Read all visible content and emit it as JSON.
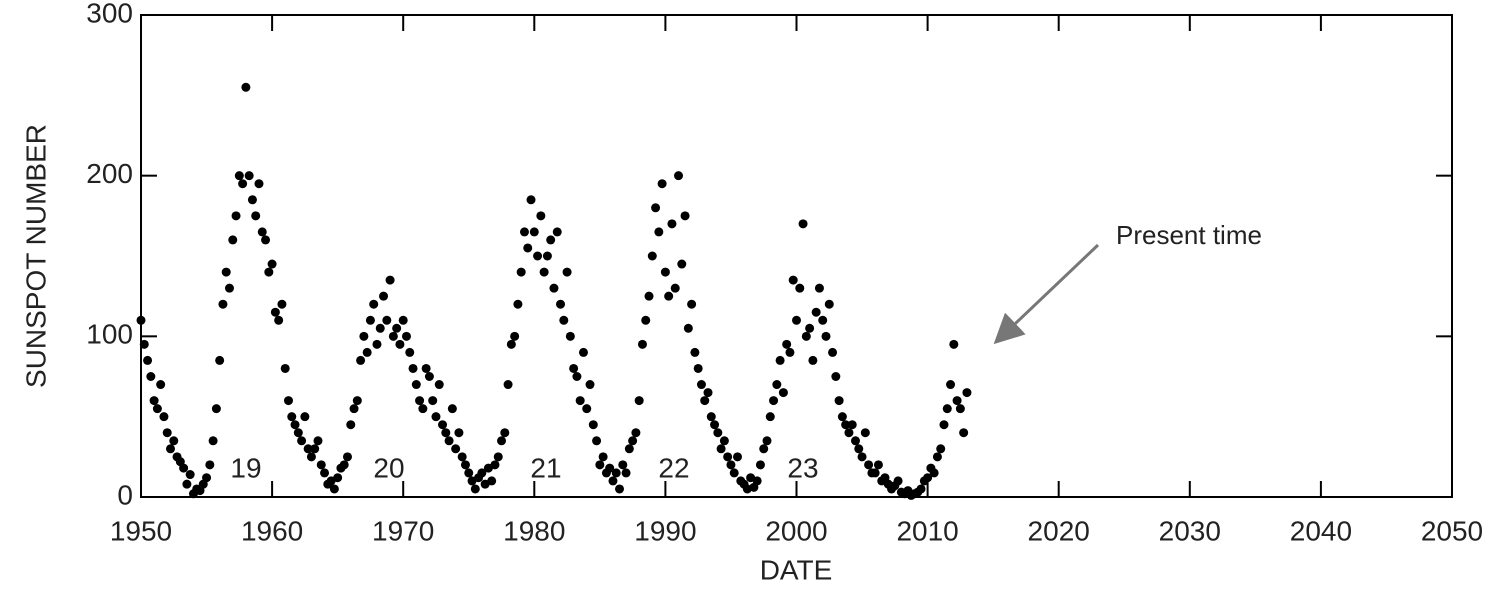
{
  "chart_data": {
    "type": "scatter",
    "ylabel": "SUNSPOT NUMBER",
    "xlabel": "DATE",
    "annotations": [
      "19",
      "20",
      "21",
      "22",
      "23",
      "Present time"
    ],
    "color": "#000000",
    "xlim": [
      1950,
      2050
    ],
    "xticks": [
      1950,
      1960,
      1970,
      1980,
      1990,
      2000,
      2010,
      2020,
      2030,
      2040,
      2050
    ],
    "ylim": [
      0,
      300
    ],
    "yticks": [
      0,
      100,
      200,
      300
    ],
    "x": [
      1950,
      1950.25,
      1950.5,
      1950.75,
      1951,
      1951.25,
      1951.5,
      1951.75,
      1952,
      1952.25,
      1952.5,
      1952.75,
      1953,
      1953.25,
      1953.5,
      1953.75,
      1954,
      1954.25,
      1954.5,
      1954.75,
      1955,
      1955.25,
      1955.5,
      1955.75,
      1956,
      1956.25,
      1956.5,
      1956.75,
      1957,
      1957.25,
      1957.5,
      1957.75,
      1958,
      1958.25,
      1958.5,
      1958.75,
      1959,
      1959.25,
      1959.5,
      1959.75,
      1960,
      1960.25,
      1960.5,
      1960.75,
      1961,
      1961.25,
      1961.5,
      1961.75,
      1962,
      1962.25,
      1962.5,
      1962.75,
      1963,
      1963.25,
      1963.5,
      1963.75,
      1964,
      1964.25,
      1964.5,
      1964.75,
      1965,
      1965.25,
      1965.5,
      1965.75,
      1966,
      1966.25,
      1966.5,
      1966.75,
      1967,
      1967.25,
      1967.5,
      1967.75,
      1968,
      1968.25,
      1968.5,
      1968.75,
      1969,
      1969.25,
      1969.5,
      1969.75,
      1970,
      1970.25,
      1970.5,
      1970.75,
      1971,
      1971.25,
      1971.5,
      1971.75,
      1972,
      1972.25,
      1972.5,
      1972.75,
      1973,
      1973.25,
      1973.5,
      1973.75,
      1974,
      1974.25,
      1974.5,
      1974.75,
      1975,
      1975.25,
      1975.5,
      1975.75,
      1976,
      1976.25,
      1976.5,
      1976.75,
      1977,
      1977.25,
      1977.5,
      1977.75,
      1978,
      1978.25,
      1978.5,
      1978.75,
      1979,
      1979.25,
      1979.5,
      1979.75,
      1980,
      1980.25,
      1980.5,
      1980.75,
      1981,
      1981.25,
      1981.5,
      1981.75,
      1982,
      1982.25,
      1982.5,
      1982.75,
      1983,
      1983.25,
      1983.5,
      1983.75,
      1984,
      1984.25,
      1984.5,
      1984.75,
      1985,
      1985.25,
      1985.5,
      1985.75,
      1986,
      1986.25,
      1986.5,
      1986.75,
      1987,
      1987.25,
      1987.5,
      1987.75,
      1988,
      1988.25,
      1988.5,
      1988.75,
      1989,
      1989.25,
      1989.5,
      1989.75,
      1990,
      1990.25,
      1990.5,
      1990.75,
      1991,
      1991.25,
      1991.5,
      1991.75,
      1992,
      1992.25,
      1992.5,
      1992.75,
      1993,
      1993.25,
      1993.5,
      1993.75,
      1994,
      1994.25,
      1994.5,
      1994.75,
      1995,
      1995.25,
      1995.5,
      1995.75,
      1996,
      1996.25,
      1996.5,
      1996.75,
      1997,
      1997.25,
      1997.5,
      1997.75,
      1998,
      1998.25,
      1998.5,
      1998.75,
      1999,
      1999.25,
      1999.5,
      1999.75,
      2000,
      2000.25,
      2000.5,
      2000.75,
      2001,
      2001.25,
      2001.5,
      2001.75,
      2002,
      2002.25,
      2002.5,
      2002.75,
      2003,
      2003.25,
      2003.5,
      2003.75,
      2004,
      2004.25,
      2004.5,
      2004.75,
      2005,
      2005.25,
      2005.5,
      2005.75,
      2006,
      2006.25,
      2006.5,
      2006.75,
      2007,
      2007.25,
      2007.5,
      2007.75,
      2008,
      2008.25,
      2008.5,
      2008.75,
      2009,
      2009.25,
      2009.5,
      2009.75,
      2010,
      2010.25,
      2010.5,
      2010.75,
      2011,
      2011.25,
      2011.5,
      2011.75,
      2012,
      2012.25,
      2012.5,
      2012.75,
      2013
    ],
    "values": [
      110,
      95,
      85,
      75,
      60,
      55,
      70,
      50,
      40,
      30,
      35,
      25,
      22,
      18,
      8,
      14,
      2,
      5,
      4,
      8,
      12,
      20,
      35,
      55,
      85,
      120,
      140,
      130,
      160,
      175,
      200,
      195,
      255,
      200,
      185,
      175,
      195,
      165,
      160,
      140,
      145,
      115,
      110,
      120,
      80,
      60,
      50,
      45,
      40,
      35,
      50,
      30,
      25,
      30,
      35,
      20,
      15,
      8,
      10,
      5,
      12,
      18,
      20,
      25,
      45,
      55,
      60,
      85,
      100,
      90,
      110,
      120,
      95,
      105,
      125,
      110,
      135,
      100,
      105,
      95,
      110,
      100,
      90,
      80,
      70,
      60,
      55,
      80,
      75,
      60,
      50,
      70,
      45,
      40,
      35,
      55,
      30,
      40,
      25,
      20,
      15,
      10,
      5,
      12,
      15,
      8,
      18,
      10,
      20,
      25,
      35,
      40,
      70,
      95,
      100,
      120,
      140,
      165,
      155,
      185,
      165,
      150,
      175,
      140,
      150,
      160,
      130,
      165,
      120,
      110,
      140,
      100,
      80,
      75,
      60,
      90,
      55,
      70,
      45,
      35,
      20,
      25,
      15,
      18,
      10,
      15,
      5,
      20,
      15,
      30,
      35,
      40,
      60,
      95,
      110,
      125,
      150,
      180,
      165,
      195,
      140,
      125,
      170,
      130,
      200,
      145,
      175,
      105,
      120,
      90,
      80,
      70,
      60,
      65,
      50,
      45,
      40,
      30,
      35,
      25,
      20,
      15,
      25,
      10,
      8,
      5,
      12,
      6,
      10,
      20,
      30,
      35,
      50,
      60,
      70,
      85,
      65,
      95,
      90,
      135,
      110,
      130,
      170,
      100,
      105,
      85,
      115,
      130,
      110,
      100,
      120,
      90,
      75,
      60,
      50,
      45,
      40,
      45,
      35,
      30,
      25,
      40,
      20,
      15,
      15,
      20,
      10,
      12,
      8,
      5,
      7,
      10,
      3,
      2,
      4,
      1,
      2,
      3,
      5,
      10,
      12,
      18,
      15,
      25,
      30,
      45,
      55,
      70,
      95,
      60,
      55,
      40,
      65
    ]
  }
}
